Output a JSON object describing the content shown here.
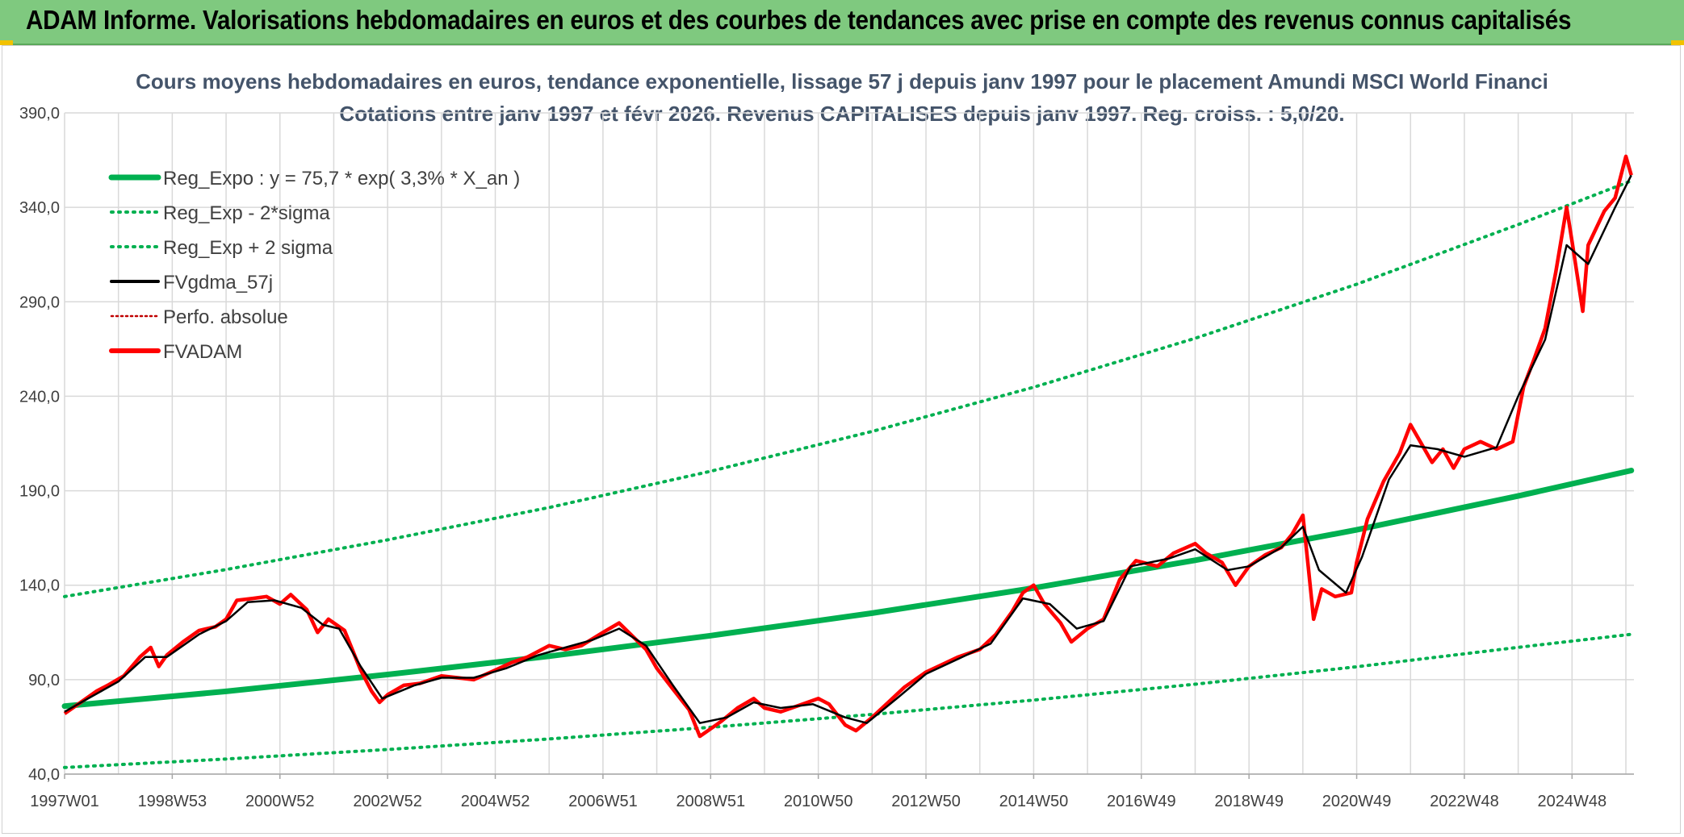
{
  "banner": {
    "title": "ADAM Informe. Valorisations hebdomadaires en euros et des courbes de tendances avec prise en compte des revenus connus capitalisés"
  },
  "colors": {
    "banner_bg": "#7fc97f",
    "reg_expo": "#00b050",
    "fvgdma": "#000000",
    "fvadam": "#ff0000",
    "perfo": "#c00000"
  },
  "chart_data": {
    "type": "line",
    "title": [
      "Cours moyens hebdomadaires en euros, tendance exponentielle, lissage 57 j depuis janv 1997 pour le placement Amundi MSCI World Financi",
      "Cotations entre janv 1997 et févr 2026. Revenus CAPITALISES depuis janv 1997. Reg. croiss. : 5,0/20."
    ],
    "ylim": [
      40,
      390
    ],
    "y_ticks": [
      "390,0",
      "340,0",
      "290,0",
      "240,0",
      "190,0",
      "140,0",
      "90,0",
      "40,0"
    ],
    "x_range": [
      1997.0,
      2026.15
    ],
    "x_ticks": [
      "1997W01",
      "1998W53",
      "2000W52",
      "2002W52",
      "2004W52",
      "2006W51",
      "2008W51",
      "2010W50",
      "2012W50",
      "2014W50",
      "2016W49",
      "2018W49",
      "2020W49",
      "2022W48",
      "2024W48"
    ],
    "grid": true,
    "legend_position": "top-left",
    "legend": [
      {
        "key": "reg_expo",
        "label": "Reg_Expo : y = 75,7 * exp( 3,3% *  X_an )"
      },
      {
        "key": "reg_minus",
        "label": "Reg_Exp - 2*sigma"
      },
      {
        "key": "reg_plus",
        "label": "Reg_Exp + 2 sigma"
      },
      {
        "key": "fvgdma",
        "label": "FVgdma_57j"
      },
      {
        "key": "perfo",
        "label": "Perfo. absolue"
      },
      {
        "key": "fvadam",
        "label": "FVADAM"
      }
    ],
    "trend": {
      "reg_expo": [
        [
          1997.0,
          76.0
        ],
        [
          2000.0,
          83.8
        ],
        [
          2003.0,
          92.7
        ],
        [
          2006.0,
          102.4
        ],
        [
          2009.0,
          113.3
        ],
        [
          2012.0,
          125.2
        ],
        [
          2015.0,
          138.5
        ],
        [
          2018.0,
          153.2
        ],
        [
          2021.0,
          169.3
        ],
        [
          2024.0,
          187.2
        ],
        [
          2026.1,
          200.7
        ]
      ],
      "reg_minus": [
        [
          1997.0,
          43.5
        ],
        [
          2000.0,
          48.0
        ],
        [
          2003.0,
          53.0
        ],
        [
          2006.0,
          58.6
        ],
        [
          2009.0,
          64.8
        ],
        [
          2012.0,
          71.6
        ],
        [
          2015.0,
          79.2
        ],
        [
          2018.0,
          87.6
        ],
        [
          2021.0,
          96.8
        ],
        [
          2024.0,
          107.1
        ],
        [
          2026.1,
          114.0
        ]
      ],
      "reg_plus": [
        [
          1997.0,
          134.0
        ],
        [
          2000.0,
          148.3
        ],
        [
          2003.0,
          164.0
        ],
        [
          2006.0,
          181.1
        ],
        [
          2009.0,
          200.3
        ],
        [
          2012.0,
          221.4
        ],
        [
          2015.0,
          244.8
        ],
        [
          2018.0,
          270.7
        ],
        [
          2021.0,
          299.3
        ],
        [
          2024.0,
          330.9
        ],
        [
          2026.1,
          354.0
        ]
      ]
    },
    "series": [
      {
        "key": "fvadam",
        "name": "FVADAM",
        "points": [
          [
            1997.0,
            72
          ],
          [
            1997.3,
            78
          ],
          [
            1997.6,
            84
          ],
          [
            1997.8,
            87
          ],
          [
            1998.1,
            92
          ],
          [
            1998.4,
            102
          ],
          [
            1998.6,
            107
          ],
          [
            1998.75,
            97
          ],
          [
            1998.9,
            103
          ],
          [
            1999.2,
            110
          ],
          [
            1999.5,
            116
          ],
          [
            1999.8,
            118
          ],
          [
            2000.0,
            122
          ],
          [
            2000.2,
            132
          ],
          [
            2000.5,
            133
          ],
          [
            2000.75,
            134
          ],
          [
            2001.0,
            130
          ],
          [
            2001.2,
            135
          ],
          [
            2001.5,
            127
          ],
          [
            2001.7,
            115
          ],
          [
            2001.9,
            122
          ],
          [
            2002.2,
            116
          ],
          [
            2002.5,
            95
          ],
          [
            2002.7,
            84
          ],
          [
            2002.85,
            78
          ],
          [
            2003.0,
            82
          ],
          [
            2003.3,
            87
          ],
          [
            2003.6,
            88
          ],
          [
            2004.0,
            92
          ],
          [
            2004.3,
            91
          ],
          [
            2004.6,
            90
          ],
          [
            2005.0,
            95
          ],
          [
            2005.3,
            99
          ],
          [
            2005.6,
            102
          ],
          [
            2006.0,
            108
          ],
          [
            2006.3,
            106
          ],
          [
            2006.6,
            108
          ],
          [
            2007.0,
            115
          ],
          [
            2007.3,
            120
          ],
          [
            2007.55,
            113
          ],
          [
            2007.8,
            106
          ],
          [
            2008.0,
            96
          ],
          [
            2008.3,
            85
          ],
          [
            2008.6,
            74
          ],
          [
            2008.8,
            60
          ],
          [
            2009.0,
            64
          ],
          [
            2009.2,
            68
          ],
          [
            2009.5,
            75
          ],
          [
            2009.8,
            80
          ],
          [
            2010.0,
            75
          ],
          [
            2010.3,
            73
          ],
          [
            2010.6,
            76
          ],
          [
            2011.0,
            80
          ],
          [
            2011.2,
            77
          ],
          [
            2011.5,
            66
          ],
          [
            2011.7,
            63
          ],
          [
            2012.0,
            70
          ],
          [
            2012.3,
            78
          ],
          [
            2012.6,
            86
          ],
          [
            2013.0,
            94
          ],
          [
            2013.3,
            98
          ],
          [
            2013.6,
            102
          ],
          [
            2014.0,
            106
          ],
          [
            2014.3,
            114
          ],
          [
            2014.6,
            126
          ],
          [
            2014.8,
            136
          ],
          [
            2015.0,
            140
          ],
          [
            2015.2,
            130
          ],
          [
            2015.5,
            120
          ],
          [
            2015.7,
            110
          ],
          [
            2016.0,
            117
          ],
          [
            2016.3,
            122
          ],
          [
            2016.6,
            143
          ],
          [
            2016.9,
            153
          ],
          [
            2017.3,
            150
          ],
          [
            2017.6,
            157
          ],
          [
            2018.0,
            162
          ],
          [
            2018.2,
            157
          ],
          [
            2018.5,
            152
          ],
          [
            2018.75,
            140
          ],
          [
            2019.0,
            150
          ],
          [
            2019.3,
            156
          ],
          [
            2019.6,
            160
          ],
          [
            2019.8,
            167
          ],
          [
            2020.0,
            177
          ],
          [
            2020.1,
            150
          ],
          [
            2020.2,
            122
          ],
          [
            2020.35,
            138
          ],
          [
            2020.6,
            134
          ],
          [
            2020.9,
            136
          ],
          [
            2021.0,
            152
          ],
          [
            2021.2,
            175
          ],
          [
            2021.5,
            195
          ],
          [
            2021.8,
            210
          ],
          [
            2022.0,
            225
          ],
          [
            2022.2,
            215
          ],
          [
            2022.4,
            205
          ],
          [
            2022.6,
            212
          ],
          [
            2022.8,
            202
          ],
          [
            2023.0,
            212
          ],
          [
            2023.3,
            216
          ],
          [
            2023.6,
            212
          ],
          [
            2023.9,
            216
          ],
          [
            2024.1,
            245
          ],
          [
            2024.3,
            260
          ],
          [
            2024.5,
            276
          ],
          [
            2024.7,
            306
          ],
          [
            2024.9,
            340
          ],
          [
            2025.0,
            322
          ],
          [
            2025.2,
            285
          ],
          [
            2025.3,
            320
          ],
          [
            2025.6,
            338
          ],
          [
            2025.8,
            345
          ],
          [
            2026.0,
            367
          ],
          [
            2026.1,
            357
          ]
        ]
      },
      {
        "key": "fvgdma",
        "name": "FVgdma_57j",
        "points": [
          [
            1997.0,
            73
          ],
          [
            1997.5,
            81
          ],
          [
            1998.0,
            89
          ],
          [
            1998.5,
            102
          ],
          [
            1998.9,
            102
          ],
          [
            1999.5,
            114
          ],
          [
            2000.0,
            121
          ],
          [
            2000.4,
            131
          ],
          [
            2000.9,
            132
          ],
          [
            2001.4,
            128
          ],
          [
            2001.8,
            119
          ],
          [
            2002.1,
            117
          ],
          [
            2002.5,
            97
          ],
          [
            2002.9,
            80
          ],
          [
            2003.5,
            87
          ],
          [
            2004.0,
            91
          ],
          [
            2004.6,
            91
          ],
          [
            2005.2,
            96
          ],
          [
            2005.8,
            103
          ],
          [
            2006.3,
            107
          ],
          [
            2006.8,
            111
          ],
          [
            2007.3,
            117
          ],
          [
            2007.8,
            108
          ],
          [
            2008.3,
            87
          ],
          [
            2008.8,
            67
          ],
          [
            2009.3,
            70
          ],
          [
            2009.8,
            78
          ],
          [
            2010.3,
            75
          ],
          [
            2010.9,
            77
          ],
          [
            2011.5,
            70
          ],
          [
            2011.9,
            67
          ],
          [
            2012.5,
            81
          ],
          [
            2013.0,
            93
          ],
          [
            2013.6,
            101
          ],
          [
            2014.2,
            109
          ],
          [
            2014.8,
            133
          ],
          [
            2015.3,
            130
          ],
          [
            2015.8,
            117
          ],
          [
            2016.3,
            121
          ],
          [
            2016.8,
            150
          ],
          [
            2017.5,
            154
          ],
          [
            2018.0,
            159
          ],
          [
            2018.6,
            148
          ],
          [
            2019.0,
            150
          ],
          [
            2019.6,
            160
          ],
          [
            2020.0,
            171
          ],
          [
            2020.3,
            148
          ],
          [
            2020.8,
            136
          ],
          [
            2021.1,
            155
          ],
          [
            2021.6,
            196
          ],
          [
            2022.0,
            214
          ],
          [
            2022.5,
            212
          ],
          [
            2023.0,
            208
          ],
          [
            2023.6,
            213
          ],
          [
            2024.0,
            240
          ],
          [
            2024.5,
            270
          ],
          [
            2024.9,
            320
          ],
          [
            2025.3,
            310
          ],
          [
            2025.8,
            340
          ],
          [
            2026.1,
            357
          ]
        ]
      }
    ]
  }
}
